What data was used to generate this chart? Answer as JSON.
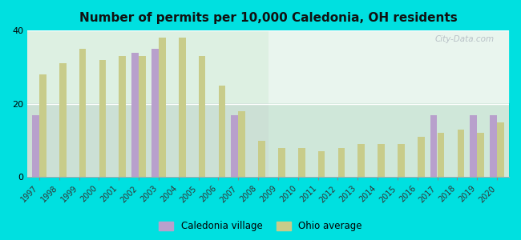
{
  "title": "Number of permits per 10,000 Caledonia, OH residents",
  "years": [
    1997,
    1998,
    1999,
    2000,
    2001,
    2002,
    2003,
    2004,
    2005,
    2006,
    2007,
    2008,
    2009,
    2010,
    2011,
    2012,
    2013,
    2014,
    2015,
    2016,
    2017,
    2018,
    2019,
    2020
  ],
  "caledonia": [
    17,
    null,
    null,
    null,
    null,
    34,
    35,
    null,
    null,
    null,
    17,
    null,
    null,
    null,
    null,
    null,
    null,
    null,
    null,
    null,
    17,
    null,
    17,
    17
  ],
  "ohio_avg": [
    28,
    31,
    35,
    32,
    33,
    33,
    38,
    38,
    33,
    25,
    18,
    10,
    8,
    8,
    7,
    8,
    9,
    9,
    9,
    11,
    12,
    13,
    12,
    15
  ],
  "caledonia_color": "#b8a0cc",
  "ohio_color": "#c8cc8a",
  "figure_bg": "#00e0e0",
  "plot_bg": "#e8f5ee",
  "ylim": [
    0,
    40
  ],
  "yticks": [
    0,
    20,
    40
  ],
  "legend_caledonia": "Caledonia village",
  "legend_ohio": "Ohio average",
  "watermark": "City-Data.com"
}
